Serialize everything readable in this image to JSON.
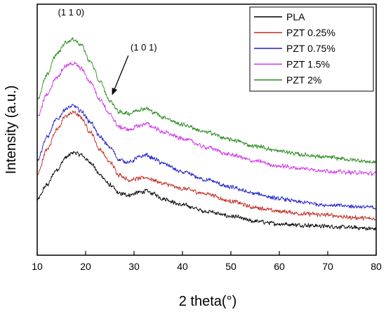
{
  "chart_data": {
    "type": "line",
    "title": "",
    "xlabel": "2 theta(°)",
    "ylabel": "Intensity (a.u.)",
    "xlim": [
      10,
      80
    ],
    "x_ticks": [
      10,
      20,
      30,
      40,
      50,
      60,
      70,
      80
    ],
    "ylim": [
      0,
      1
    ],
    "y_ticks_shown": false,
    "grid": false,
    "legend_position": "top-right",
    "series": [
      {
        "name": "PLA",
        "color": "#000000",
        "noise": 0.01,
        "points": [
          [
            10,
            0.22
          ],
          [
            12,
            0.28
          ],
          [
            14,
            0.34
          ],
          [
            16,
            0.39
          ],
          [
            17.5,
            0.41
          ],
          [
            19,
            0.4
          ],
          [
            21,
            0.37
          ],
          [
            23,
            0.32
          ],
          [
            25,
            0.28
          ],
          [
            27,
            0.245
          ],
          [
            29,
            0.24
          ],
          [
            31,
            0.25
          ],
          [
            32.5,
            0.255
          ],
          [
            34,
            0.245
          ],
          [
            36,
            0.225
          ],
          [
            40,
            0.2
          ],
          [
            45,
            0.175
          ],
          [
            50,
            0.155
          ],
          [
            55,
            0.135
          ],
          [
            60,
            0.125
          ],
          [
            65,
            0.12
          ],
          [
            70,
            0.115
          ],
          [
            75,
            0.11
          ],
          [
            80,
            0.105
          ]
        ]
      },
      {
        "name": "PZT 0.25%",
        "color": "#c0281e",
        "noise": 0.01,
        "points": [
          [
            10,
            0.32
          ],
          [
            12,
            0.42
          ],
          [
            14,
            0.5
          ],
          [
            16,
            0.555
          ],
          [
            17.5,
            0.57
          ],
          [
            19,
            0.55
          ],
          [
            21,
            0.49
          ],
          [
            23,
            0.42
          ],
          [
            25,
            0.37
          ],
          [
            27,
            0.32
          ],
          [
            29,
            0.3
          ],
          [
            31,
            0.305
          ],
          [
            32.5,
            0.31
          ],
          [
            34,
            0.3
          ],
          [
            36,
            0.285
          ],
          [
            40,
            0.265
          ],
          [
            45,
            0.245
          ],
          [
            50,
            0.215
          ],
          [
            55,
            0.19
          ],
          [
            60,
            0.175
          ],
          [
            65,
            0.165
          ],
          [
            70,
            0.16
          ],
          [
            75,
            0.15
          ],
          [
            80,
            0.145
          ]
        ]
      },
      {
        "name": "PZT 0.75%",
        "color": "#1e1ecc",
        "noise": 0.01,
        "points": [
          [
            10,
            0.38
          ],
          [
            12,
            0.47
          ],
          [
            14,
            0.54
          ],
          [
            16,
            0.585
          ],
          [
            17.5,
            0.595
          ],
          [
            19,
            0.575
          ],
          [
            21,
            0.53
          ],
          [
            23,
            0.47
          ],
          [
            25,
            0.43
          ],
          [
            27,
            0.38
          ],
          [
            29,
            0.37
          ],
          [
            31,
            0.39
          ],
          [
            32.5,
            0.4
          ],
          [
            34,
            0.385
          ],
          [
            36,
            0.365
          ],
          [
            40,
            0.33
          ],
          [
            45,
            0.3
          ],
          [
            50,
            0.27
          ],
          [
            55,
            0.245
          ],
          [
            60,
            0.225
          ],
          [
            65,
            0.21
          ],
          [
            70,
            0.2
          ],
          [
            75,
            0.195
          ],
          [
            80,
            0.19
          ]
        ]
      },
      {
        "name": "PZT 1.5%",
        "color": "#cc33e6",
        "noise": 0.01,
        "points": [
          [
            10,
            0.55
          ],
          [
            12,
            0.64
          ],
          [
            14,
            0.71
          ],
          [
            16,
            0.755
          ],
          [
            17.5,
            0.765
          ],
          [
            19,
            0.745
          ],
          [
            21,
            0.69
          ],
          [
            23,
            0.62
          ],
          [
            25,
            0.56
          ],
          [
            27,
            0.51
          ],
          [
            29,
            0.5
          ],
          [
            31,
            0.515
          ],
          [
            32.5,
            0.525
          ],
          [
            34,
            0.51
          ],
          [
            36,
            0.49
          ],
          [
            40,
            0.465
          ],
          [
            45,
            0.43
          ],
          [
            50,
            0.4
          ],
          [
            55,
            0.375
          ],
          [
            60,
            0.355
          ],
          [
            65,
            0.345
          ],
          [
            70,
            0.335
          ],
          [
            75,
            0.33
          ],
          [
            80,
            0.325
          ]
        ]
      },
      {
        "name": "PZT 2%",
        "color": "#2a8a1e",
        "noise": 0.01,
        "points": [
          [
            10,
            0.62
          ],
          [
            12,
            0.72
          ],
          [
            14,
            0.8
          ],
          [
            16,
            0.85
          ],
          [
            17.5,
            0.86
          ],
          [
            19,
            0.84
          ],
          [
            21,
            0.77
          ],
          [
            23,
            0.69
          ],
          [
            25,
            0.615
          ],
          [
            27,
            0.57
          ],
          [
            29,
            0.565
          ],
          [
            31,
            0.58
          ],
          [
            32.5,
            0.585
          ],
          [
            34,
            0.57
          ],
          [
            36,
            0.55
          ],
          [
            40,
            0.52
          ],
          [
            45,
            0.49
          ],
          [
            50,
            0.46
          ],
          [
            55,
            0.435
          ],
          [
            60,
            0.415
          ],
          [
            65,
            0.4
          ],
          [
            70,
            0.39
          ],
          [
            75,
            0.38
          ],
          [
            80,
            0.37
          ]
        ]
      }
    ],
    "annotations": [
      {
        "text": "(1 1 0)",
        "x": 17,
        "y": 0.955
      },
      {
        "text": "(1 0 1)",
        "x": 32,
        "y": 0.815,
        "arrow_to": {
          "x": 25.5,
          "y": 0.64
        }
      }
    ]
  }
}
